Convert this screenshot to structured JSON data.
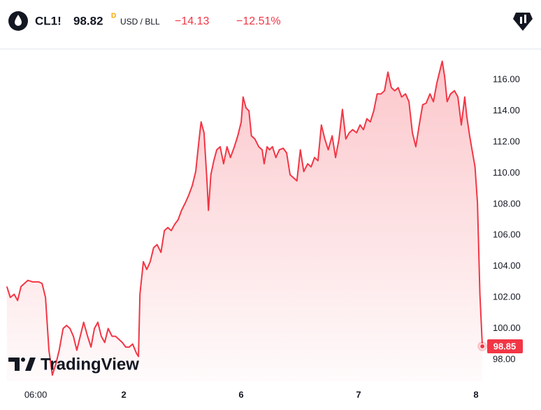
{
  "header": {
    "symbol": "CL1!",
    "price": "98.82",
    "price_flag": "D",
    "unit": "USD / BLL",
    "change": "−14.13",
    "change_pct": "−12.51%"
  },
  "watermark": "TradingView",
  "chart_data": {
    "type": "area",
    "color": "#f23645",
    "grid": false,
    "xlim": [
      -1.3,
      98
    ],
    "xticks": [
      {
        "value": 6,
        "label": "06:00"
      },
      {
        "value": 24,
        "label": "2"
      },
      {
        "value": 48,
        "label": "6"
      },
      {
        "value": 72,
        "label": "7"
      },
      {
        "value": 96,
        "label": "8"
      }
    ],
    "ylim": [
      96.6,
      117.9
    ],
    "yticks": [
      {
        "value": 98,
        "label": "98.00"
      },
      {
        "value": 100,
        "label": "100.00"
      },
      {
        "value": 102,
        "label": "102.00"
      },
      {
        "value": 104,
        "label": "104.00"
      },
      {
        "value": 106,
        "label": "106.00"
      },
      {
        "value": 108,
        "label": "108.00"
      },
      {
        "value": 110,
        "label": "110.00"
      },
      {
        "value": 112,
        "label": "112.00"
      },
      {
        "value": 114,
        "label": "114.00"
      },
      {
        "value": 116,
        "label": "116.00"
      }
    ],
    "x": [
      0.1,
      0.8,
      1.6,
      2.3,
      3.0,
      3.7,
      4.4,
      5.4,
      6.6,
      7.3,
      8.0,
      8.7,
      9.4,
      10.1,
      10.8,
      11.6,
      12.3,
      13.0,
      13.7,
      14.4,
      15.1,
      15.8,
      16.6,
      17.3,
      18.0,
      18.7,
      19.4,
      20.1,
      20.8,
      21.6,
      22.3,
      23.0,
      23.7,
      24.4,
      25.1,
      25.8,
      26.6,
      27.0,
      27.3,
      28.0,
      28.7,
      29.4,
      30.1,
      30.8,
      31.6,
      32.3,
      33.0,
      33.7,
      34.4,
      35.1,
      35.8,
      36.6,
      37.3,
      38.0,
      38.7,
      39.4,
      39.8,
      40.4,
      41.0,
      41.3,
      41.8,
      42.4,
      43.0,
      43.7,
      44.4,
      45.1,
      45.8,
      46.6,
      47.3,
      48.0,
      48.4,
      49.0,
      49.6,
      50.1,
      50.8,
      51.6,
      52.3,
      52.7,
      53.3,
      53.8,
      54.4,
      55.1,
      55.8,
      56.6,
      57.3,
      58.0,
      58.7,
      59.4,
      60.1,
      60.8,
      61.6,
      62.3,
      63.0,
      63.7,
      64.4,
      65.1,
      65.8,
      66.6,
      67.3,
      68.0,
      68.7,
      69.4,
      70.1,
      70.8,
      71.6,
      72.3,
      73.0,
      73.7,
      74.4,
      75.1,
      75.8,
      76.6,
      77.3,
      78.0,
      78.7,
      79.4,
      80.1,
      80.8,
      81.6,
      82.3,
      83.0,
      83.7,
      84.4,
      85.1,
      85.8,
      86.6,
      87.3,
      88.0,
      88.7,
      89.1,
      89.6,
      90.1,
      90.8,
      91.6,
      92.3,
      93.0,
      93.7,
      94.1,
      94.7,
      95.3,
      95.8,
      96.3,
      96.8,
      97.3
    ],
    "values": [
      102.7,
      102.0,
      102.2,
      101.8,
      102.7,
      102.9,
      103.1,
      103.0,
      103.0,
      102.9,
      102.0,
      98.6,
      97.0,
      97.7,
      98.6,
      100.0,
      100.2,
      100.0,
      99.5,
      98.6,
      99.5,
      100.4,
      99.5,
      98.8,
      100.0,
      100.4,
      99.5,
      99.1,
      100.0,
      99.5,
      99.5,
      99.3,
      99.1,
      98.8,
      98.8,
      99.0,
      98.4,
      98.2,
      102.2,
      104.3,
      103.8,
      104.3,
      105.2,
      105.4,
      104.9,
      106.3,
      106.5,
      106.3,
      106.7,
      107.0,
      107.6,
      108.1,
      108.6,
      109.2,
      110.1,
      112.2,
      113.3,
      112.6,
      109.5,
      107.6,
      109.9,
      110.8,
      111.5,
      111.7,
      110.6,
      111.7,
      111.0,
      111.7,
      112.4,
      113.3,
      114.9,
      114.2,
      114.0,
      112.4,
      112.2,
      111.7,
      111.5,
      110.6,
      111.7,
      111.5,
      111.7,
      111.0,
      111.5,
      111.6,
      111.3,
      109.9,
      109.7,
      109.5,
      111.5,
      110.1,
      110.6,
      110.4,
      111.0,
      110.8,
      113.1,
      112.2,
      111.5,
      112.4,
      111.0,
      112.2,
      114.1,
      112.2,
      112.6,
      112.8,
      112.6,
      113.1,
      112.8,
      113.5,
      113.3,
      114.0,
      115.1,
      115.1,
      115.3,
      116.5,
      115.5,
      115.3,
      115.5,
      114.9,
      115.1,
      114.6,
      112.6,
      111.7,
      113.1,
      114.4,
      114.5,
      115.1,
      114.6,
      115.8,
      116.7,
      117.2,
      116.2,
      114.6,
      115.1,
      115.3,
      114.9,
      113.1,
      114.9,
      113.7,
      112.4,
      111.3,
      110.4,
      108.1,
      102.2,
      98.85
    ]
  }
}
